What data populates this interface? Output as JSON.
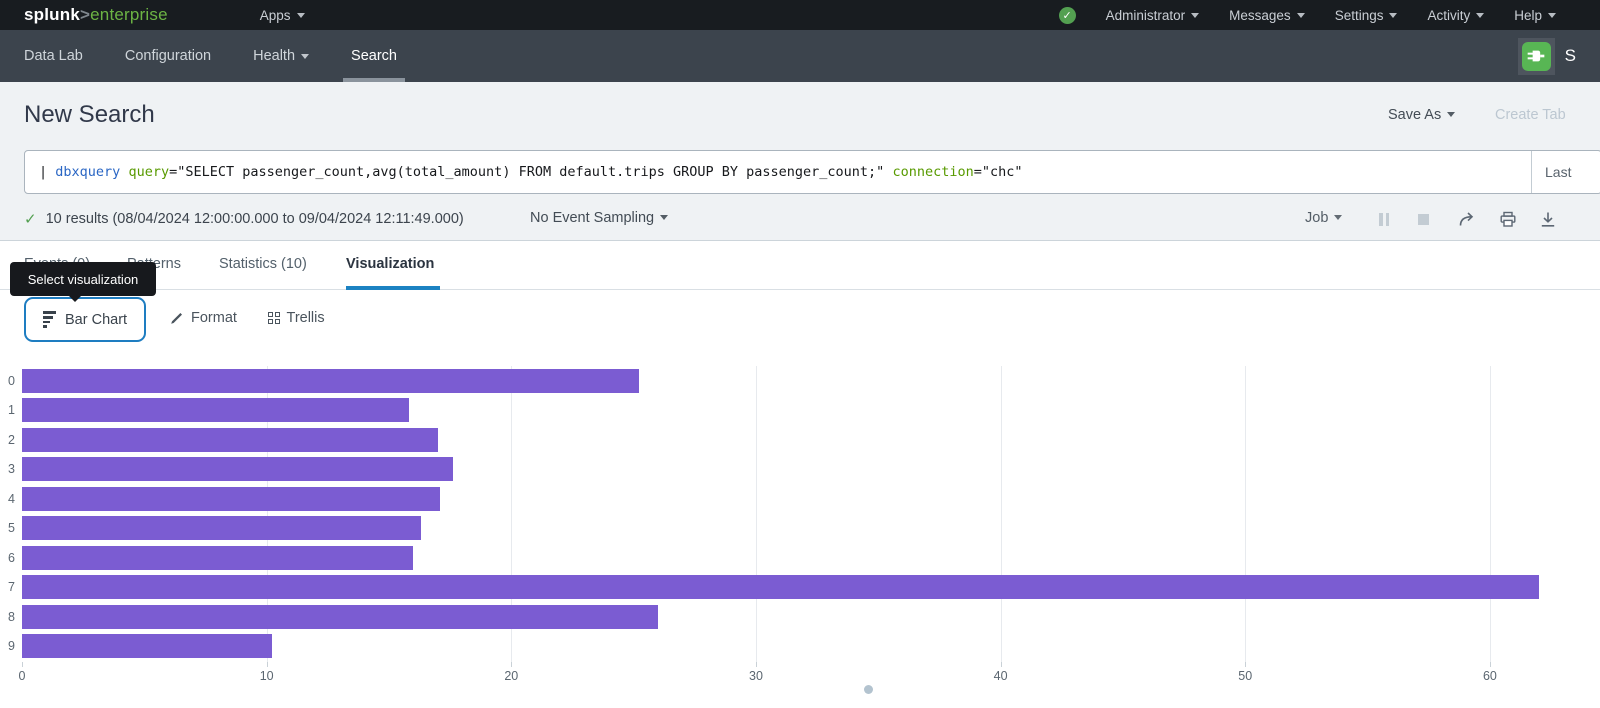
{
  "colors": {
    "bar_purple": "#7b5cd2",
    "accent_blue": "#1e7dc1",
    "command_blue": "#2a66c4",
    "param_green": "#589a00",
    "success_green": "#53a051",
    "tab_underline_blue": "#1c82c2"
  },
  "topbar": {
    "logo_splunk": "splunk",
    "logo_gt": ">",
    "logo_product": "enterprise",
    "apps_label": "Apps",
    "status_check": "✓",
    "menus": [
      {
        "label": "Administrator"
      },
      {
        "label": "Messages"
      },
      {
        "label": "Settings"
      },
      {
        "label": "Activity"
      },
      {
        "label": "Help"
      }
    ]
  },
  "appbar": {
    "items": [
      {
        "label": "Data Lab"
      },
      {
        "label": "Configuration"
      },
      {
        "label": "Health"
      },
      {
        "label": "Search"
      }
    ],
    "app_name_truncated": "S"
  },
  "header": {
    "title": "New Search",
    "save_as": "Save As",
    "create_table": "Create Tab"
  },
  "search_bar": {
    "segments": [
      {
        "text": "| "
      },
      {
        "text": "dbxquery"
      },
      {
        "text": " "
      },
      {
        "text": "query"
      },
      {
        "text": "=\"SELECT passenger_count,avg(total_amount) FROM default.trips GROUP BY passenger_count;\" "
      },
      {
        "text": "connection"
      },
      {
        "text": "=\"chc\""
      }
    ],
    "time_range": "Last"
  },
  "results_bar": {
    "check": "✓",
    "summary": "10 results (08/04/2024 12:00:00.000 to 09/04/2024 12:11:49.000)",
    "sampling": "No Event Sampling",
    "job": "Job"
  },
  "tabs": [
    {
      "label": "Events (0)"
    },
    {
      "label": "Patterns"
    },
    {
      "label": "Statistics (10)"
    },
    {
      "label": "Visualization"
    }
  ],
  "tooltip": {
    "text": "Select visualization"
  },
  "viz_toolbar": {
    "chart_type": "Bar Chart",
    "format": "Format",
    "trellis": "Trellis"
  },
  "chart_data": {
    "type": "bar",
    "orientation": "horizontal",
    "title": "",
    "xlabel": "",
    "ylabel": "",
    "categories": [
      "0",
      "1",
      "2",
      "3",
      "4",
      "5",
      "6",
      "7",
      "8",
      "9"
    ],
    "values": [
      25.2,
      15.8,
      17.0,
      17.6,
      17.1,
      16.3,
      16.0,
      62.0,
      26.0,
      10.2
    ],
    "xlim": [
      0,
      64.5
    ],
    "xticks": [
      0,
      10,
      20,
      30,
      40,
      50,
      60
    ],
    "grid": true,
    "legend": "none",
    "bar_color": "#7b5cd2"
  }
}
